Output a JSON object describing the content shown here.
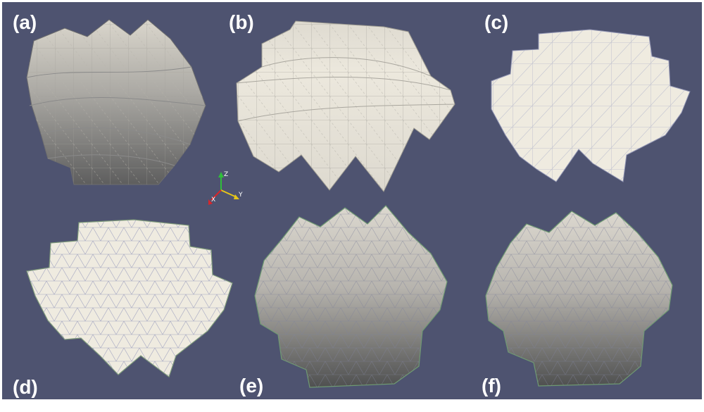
{
  "panels": [
    {
      "label": "(a)"
    },
    {
      "label": "(b)"
    },
    {
      "label": "(c)"
    },
    {
      "label": "(d)"
    },
    {
      "label": "(e)"
    },
    {
      "label": "(f)"
    }
  ],
  "axes_triad": {
    "z": "Z",
    "y": "Y",
    "x": "X"
  },
  "colors": {
    "background": "#4e5370",
    "mesh_fill": "#efebe0",
    "mesh_edge": "#8f93b5",
    "shade_dark": "#5c5c5c",
    "axis_z": "#2fbf3a",
    "axis_y": "#e6c619",
    "axis_x": "#d8262a"
  }
}
